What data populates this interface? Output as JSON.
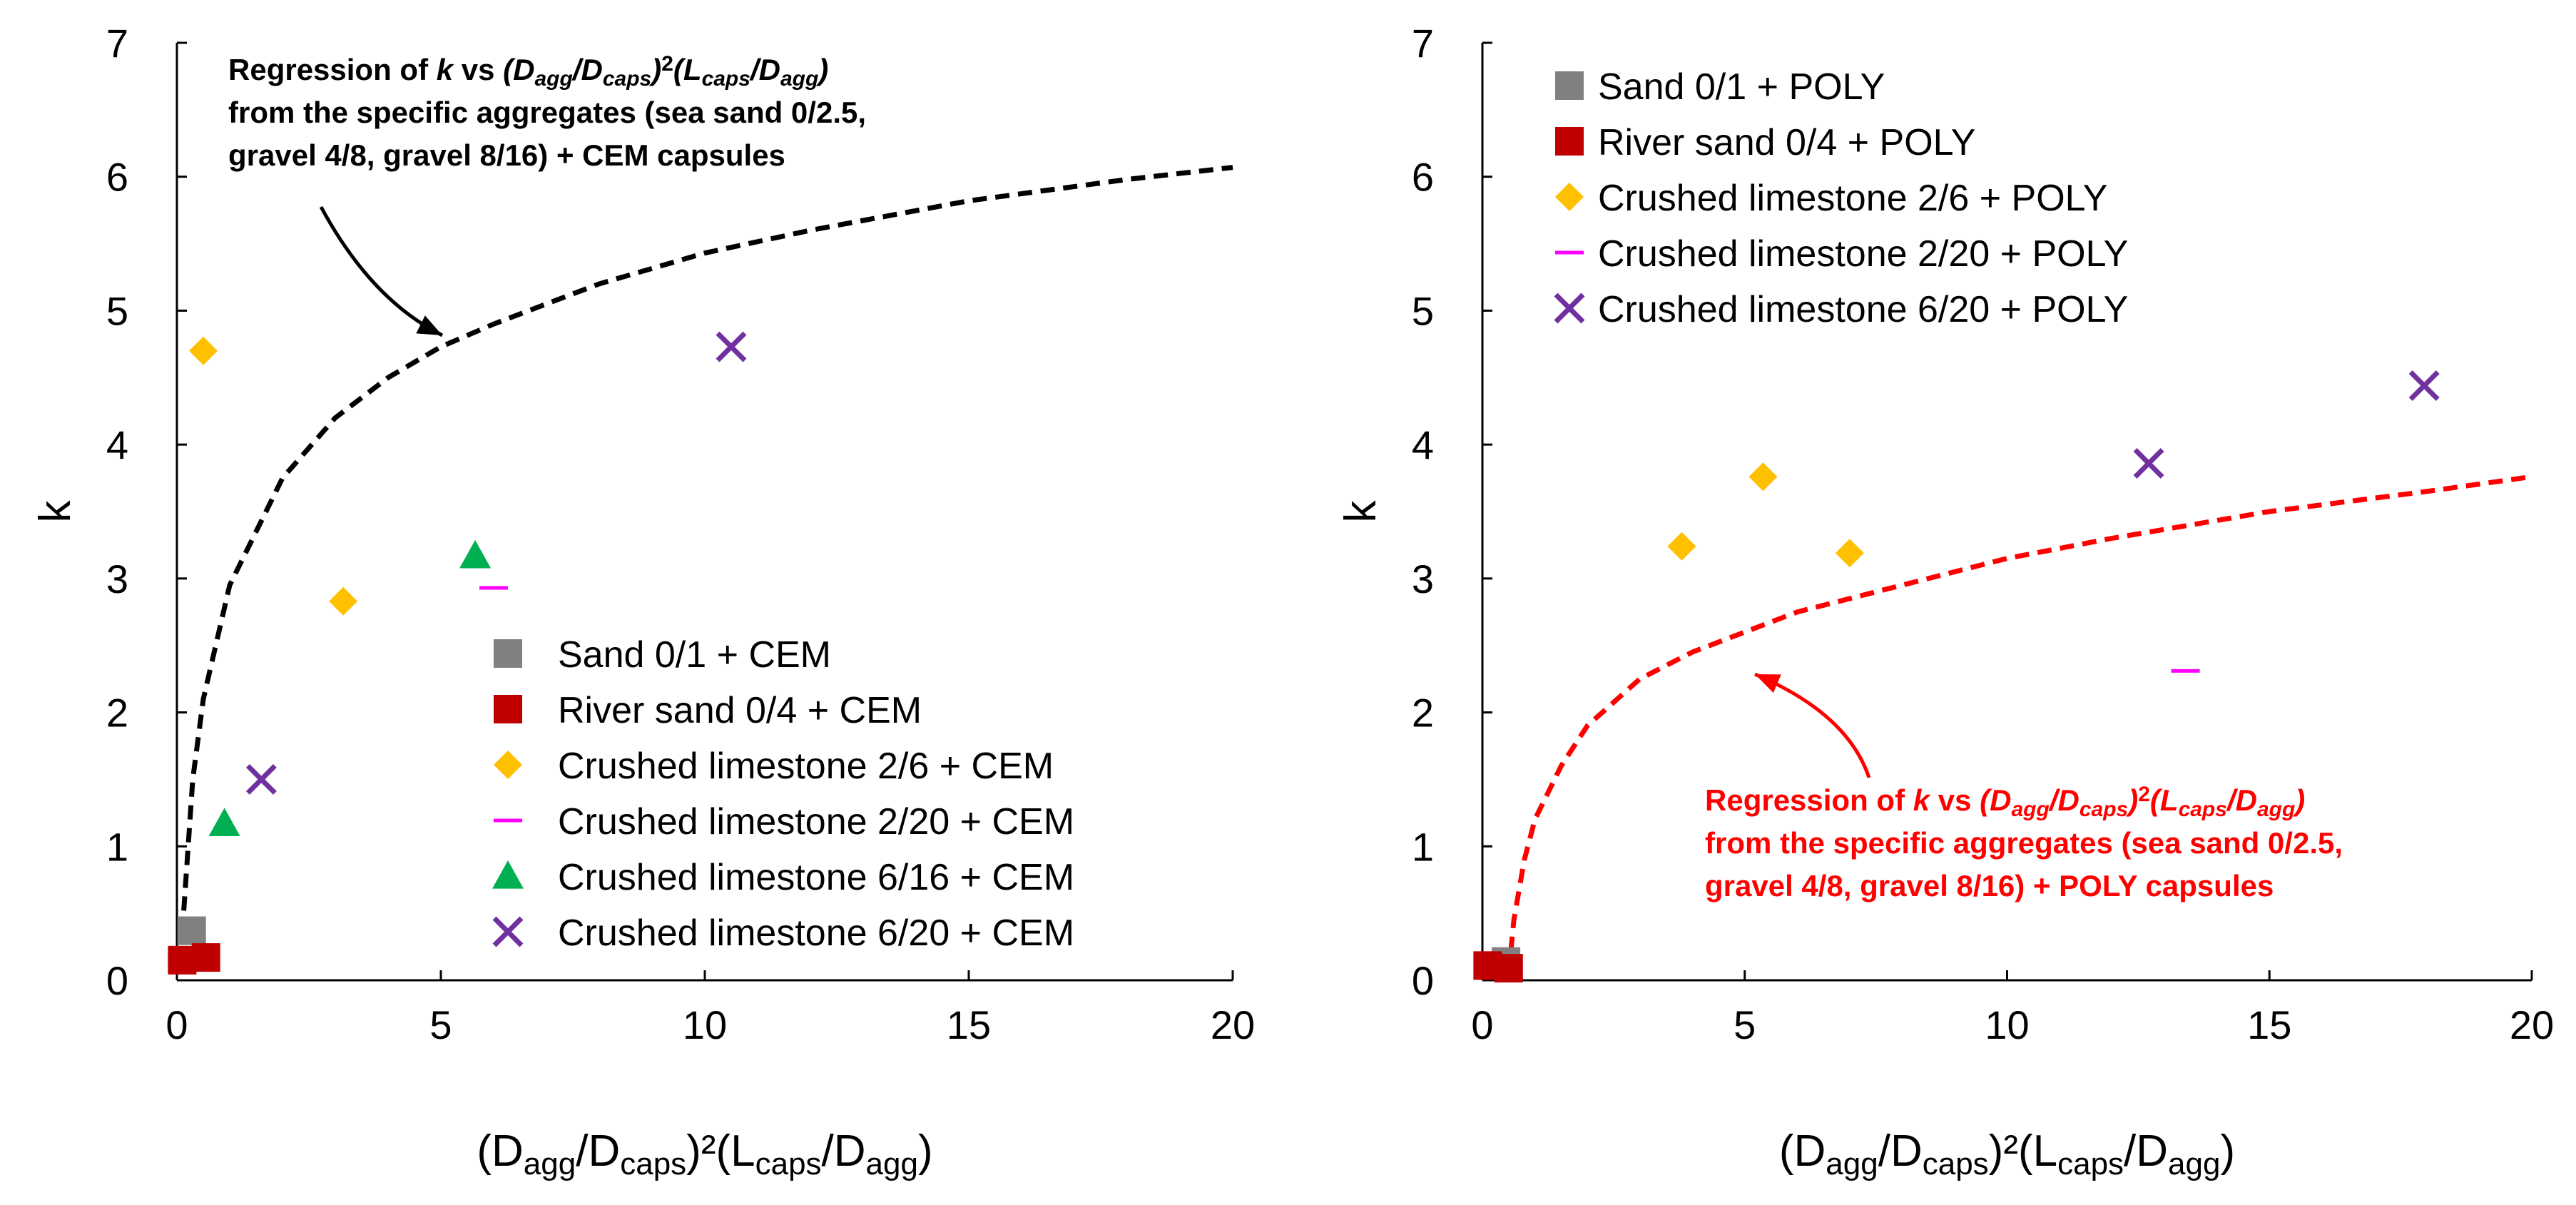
{
  "chart_data": [
    {
      "type": "scatter",
      "xlabel": {
        "base": "(D",
        "s1": "agg",
        "m1": "/D",
        "s2": "caps",
        "m2": ")²(L",
        "s3": "caps",
        "m3": "/D",
        "s4": "agg",
        "end": ")"
      },
      "ylabel": "k",
      "xlim": [
        0,
        20
      ],
      "ylim": [
        0,
        7
      ],
      "xticks": [
        0,
        5,
        10,
        15,
        20
      ],
      "yticks": [
        0,
        1,
        2,
        3,
        4,
        5,
        6,
        7
      ],
      "grid": false,
      "legend_position": "bottom-right",
      "series": [
        {
          "name": "Sand 0/1 + CEM",
          "marker": "square",
          "color": "#808080",
          "points": [
            [
              0.28,
              0.37
            ]
          ]
        },
        {
          "name": "River sand 0/4 + CEM",
          "marker": "square",
          "color": "#c00000",
          "points": [
            [
              0.1,
              0.15
            ],
            [
              0.55,
              0.17
            ]
          ]
        },
        {
          "name": "Crushed limestone 2/6 + CEM",
          "marker": "diamond",
          "color": "#ffc000",
          "points": [
            [
              0.5,
              4.7
            ],
            [
              3.15,
              2.83
            ]
          ]
        },
        {
          "name": "Crushed limestone 2/20 + CEM",
          "marker": "dash",
          "color": "#ff00ff",
          "points": [
            [
              6.0,
              2.93
            ]
          ]
        },
        {
          "name": "Crushed limestone 6/16 + CEM",
          "marker": "triangle",
          "color": "#00b050",
          "points": [
            [
              0.9,
              1.17
            ],
            [
              5.65,
              3.17
            ]
          ]
        },
        {
          "name": "Crushed limestone 6/20 + CEM",
          "marker": "x",
          "color": "#7030a0",
          "points": [
            [
              1.6,
              1.5
            ],
            [
              10.5,
              4.73
            ]
          ]
        }
      ],
      "regression": {
        "color": "#000000",
        "style": "dashed",
        "x_start": 0.05,
        "points": [
          [
            0.1,
            0.35
          ],
          [
            0.3,
            1.5
          ],
          [
            0.5,
            2.1
          ],
          [
            1,
            2.95
          ],
          [
            2,
            3.75
          ],
          [
            3,
            4.2
          ],
          [
            4,
            4.5
          ],
          [
            5,
            4.73
          ],
          [
            6,
            4.9
          ],
          [
            7,
            5.05
          ],
          [
            8,
            5.2
          ],
          [
            10,
            5.43
          ],
          [
            12,
            5.6
          ],
          [
            15,
            5.82
          ],
          [
            18,
            5.98
          ],
          [
            20,
            6.07
          ]
        ],
        "annotation_lines": [
          [
            {
              "t": "Regression of ",
              "i": false,
              "s": false
            },
            {
              "t": "k",
              "i": true,
              "s": false
            },
            {
              "t": " vs ",
              "i": false,
              "s": false
            },
            {
              "t": "(D",
              "i": true,
              "s": false
            },
            {
              "t": "agg",
              "i": true,
              "s": true
            },
            {
              "t": "/D",
              "i": true,
              "s": false
            },
            {
              "t": "caps",
              "i": true,
              "s": true
            },
            {
              "t": ")",
              "i": true,
              "s": false
            },
            {
              "t": "2",
              "i": false,
              "s": "sup"
            },
            {
              "t": "(L",
              "i": true,
              "s": false
            },
            {
              "t": "caps",
              "i": true,
              "s": true
            },
            {
              "t": "/D",
              "i": true,
              "s": false
            },
            {
              "t": "agg",
              "i": true,
              "s": true
            },
            {
              "t": ")",
              "i": true,
              "s": false
            }
          ],
          [
            {
              "t": "from the specific aggregates (sea sand 0/2.5,",
              "i": false,
              "s": false
            }
          ],
          [
            {
              "t": "gravel 4/8, gravel 8/16) + CEM capsules",
              "i": false,
              "s": false
            }
          ]
        ]
      }
    },
    {
      "type": "scatter",
      "xlabel": {
        "base": "(D",
        "s1": "agg",
        "m1": "/D",
        "s2": "caps",
        "m2": ")²(L",
        "s3": "caps",
        "m3": "/D",
        "s4": "agg",
        "end": ")"
      },
      "ylabel": "k",
      "xlim": [
        0,
        20
      ],
      "ylim": [
        0,
        7
      ],
      "xticks": [
        0,
        5,
        10,
        15,
        20
      ],
      "yticks": [
        0,
        1,
        2,
        3,
        4,
        5,
        6,
        7
      ],
      "grid": false,
      "legend_position": "top-left",
      "series": [
        {
          "name": "Sand 0/1 + POLY",
          "marker": "square",
          "color": "#808080",
          "points": [
            [
              0.45,
              0.14
            ]
          ]
        },
        {
          "name": "River sand 0/4 + POLY",
          "marker": "square",
          "color": "#c00000",
          "points": [
            [
              0.1,
              0.11
            ],
            [
              0.5,
              0.09
            ]
          ]
        },
        {
          "name": "Crushed limestone 2/6 + POLY",
          "marker": "diamond",
          "color": "#ffc000",
          "points": [
            [
              3.8,
              3.24
            ],
            [
              5.35,
              3.76
            ],
            [
              7.0,
              3.19
            ]
          ]
        },
        {
          "name": "Crushed limestone 2/20 + POLY",
          "marker": "dash",
          "color": "#ff00ff",
          "points": [
            [
              13.4,
              2.31
            ]
          ]
        },
        {
          "name": "Crushed limestone 6/20 + POLY",
          "marker": "x",
          "color": "#7030a0",
          "points": [
            [
              12.7,
              3.86
            ],
            [
              17.95,
              4.44
            ]
          ]
        }
      ],
      "regression": {
        "color": "#ff0000",
        "style": "dashed",
        "x_start": 0.5,
        "points": [
          [
            0.5,
            0.05
          ],
          [
            0.6,
            0.45
          ],
          [
            0.8,
            0.9
          ],
          [
            1,
            1.2
          ],
          [
            1.5,
            1.6
          ],
          [
            2,
            1.9
          ],
          [
            3,
            2.25
          ],
          [
            4,
            2.45
          ],
          [
            5,
            2.6
          ],
          [
            6,
            2.75
          ],
          [
            8,
            2.95
          ],
          [
            10,
            3.15
          ],
          [
            12,
            3.3
          ],
          [
            15,
            3.5
          ],
          [
            18,
            3.65
          ],
          [
            20,
            3.76
          ]
        ],
        "annotation_lines": [
          [
            {
              "t": "Regression of ",
              "i": false,
              "s": false
            },
            {
              "t": "k",
              "i": true,
              "s": false
            },
            {
              "t": " vs ",
              "i": false,
              "s": false
            },
            {
              "t": "(D",
              "i": true,
              "s": false
            },
            {
              "t": "agg",
              "i": true,
              "s": true
            },
            {
              "t": "/D",
              "i": true,
              "s": false
            },
            {
              "t": "caps",
              "i": true,
              "s": true
            },
            {
              "t": ")",
              "i": true,
              "s": false
            },
            {
              "t": "2",
              "i": false,
              "s": "sup"
            },
            {
              "t": "(L",
              "i": true,
              "s": false
            },
            {
              "t": "caps",
              "i": true,
              "s": true
            },
            {
              "t": "/D",
              "i": true,
              "s": false
            },
            {
              "t": "agg",
              "i": true,
              "s": true
            },
            {
              "t": ")",
              "i": true,
              "s": false
            }
          ],
          [
            {
              "t": "from the specific aggregates (sea sand 0/2.5,",
              "i": false,
              "s": false
            }
          ],
          [
            {
              "t": "gravel 4/8, gravel 8/16) + POLY capsules",
              "i": false,
              "s": false
            }
          ]
        ]
      }
    }
  ]
}
